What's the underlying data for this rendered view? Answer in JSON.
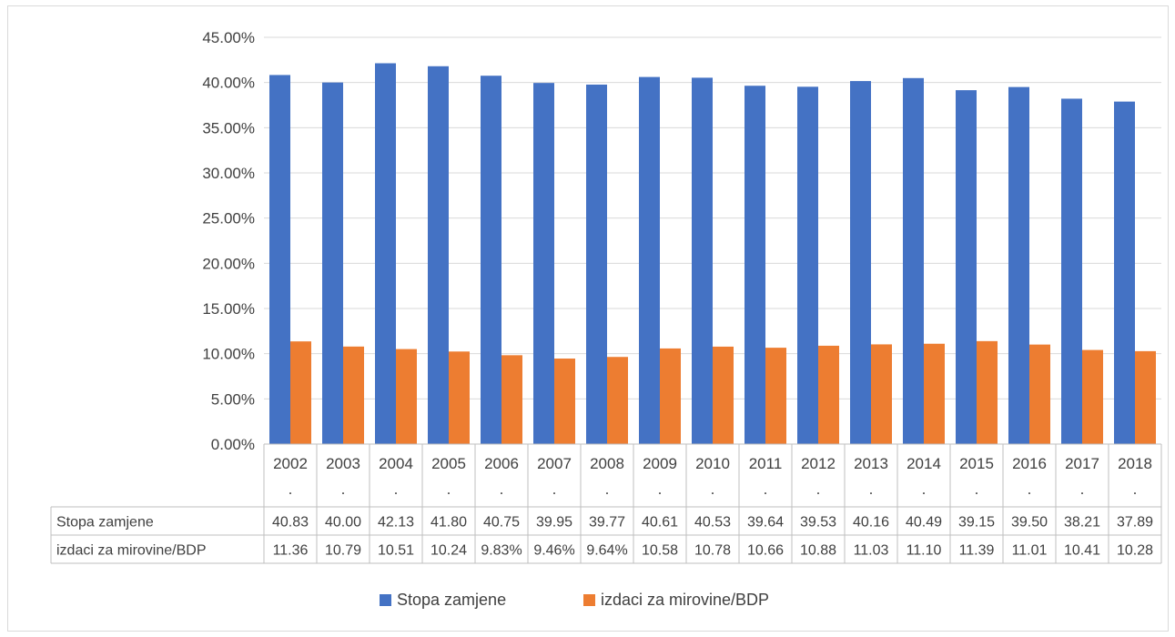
{
  "chart_data": {
    "type": "bar",
    "categories": [
      "2002.",
      "2003.",
      "2004.",
      "2005.",
      "2006.",
      "2007.",
      "2008.",
      "2009.",
      "2010.",
      "2011.",
      "2012.",
      "2013.",
      "2014.",
      "2015.",
      "2016.",
      "2017.",
      "2018."
    ],
    "series": [
      {
        "name": "Stopa zamjene",
        "color": "#4472C4",
        "values": [
          40.83,
          40.0,
          42.13,
          41.8,
          40.75,
          39.95,
          39.77,
          40.61,
          40.53,
          39.64,
          39.53,
          40.16,
          40.49,
          39.15,
          39.5,
          38.21,
          37.89
        ],
        "table_labels": [
          "40.83",
          "40.00",
          "42.13",
          "41.80",
          "40.75",
          "39.95",
          "39.77",
          "40.61",
          "40.53",
          "39.64",
          "39.53",
          "40.16",
          "40.49",
          "39.15",
          "39.50",
          "38.21",
          "37.89"
        ]
      },
      {
        "name": "izdaci za mirovine/BDP",
        "color": "#ED7D31",
        "values": [
          11.36,
          10.79,
          10.51,
          10.24,
          9.83,
          9.46,
          9.64,
          10.58,
          10.78,
          10.66,
          10.88,
          11.03,
          11.1,
          11.39,
          11.01,
          10.41,
          10.28
        ],
        "table_labels": [
          "11.36",
          "10.79",
          "10.51",
          "10.24",
          "9.83%",
          "9.46%",
          "9.64%",
          "10.58",
          "10.78",
          "10.66",
          "10.88",
          "11.03",
          "11.10",
          "11.39",
          "11.01",
          "10.41",
          "10.28"
        ]
      }
    ],
    "ylim": [
      0,
      45
    ],
    "yticks": [
      "0.00%",
      "5.00%",
      "10.00%",
      "15.00%",
      "20.00%",
      "25.00%",
      "30.00%",
      "35.00%",
      "40.00%",
      "45.00%"
    ],
    "grid": true,
    "legend": "bottom",
    "data_table": true
  }
}
